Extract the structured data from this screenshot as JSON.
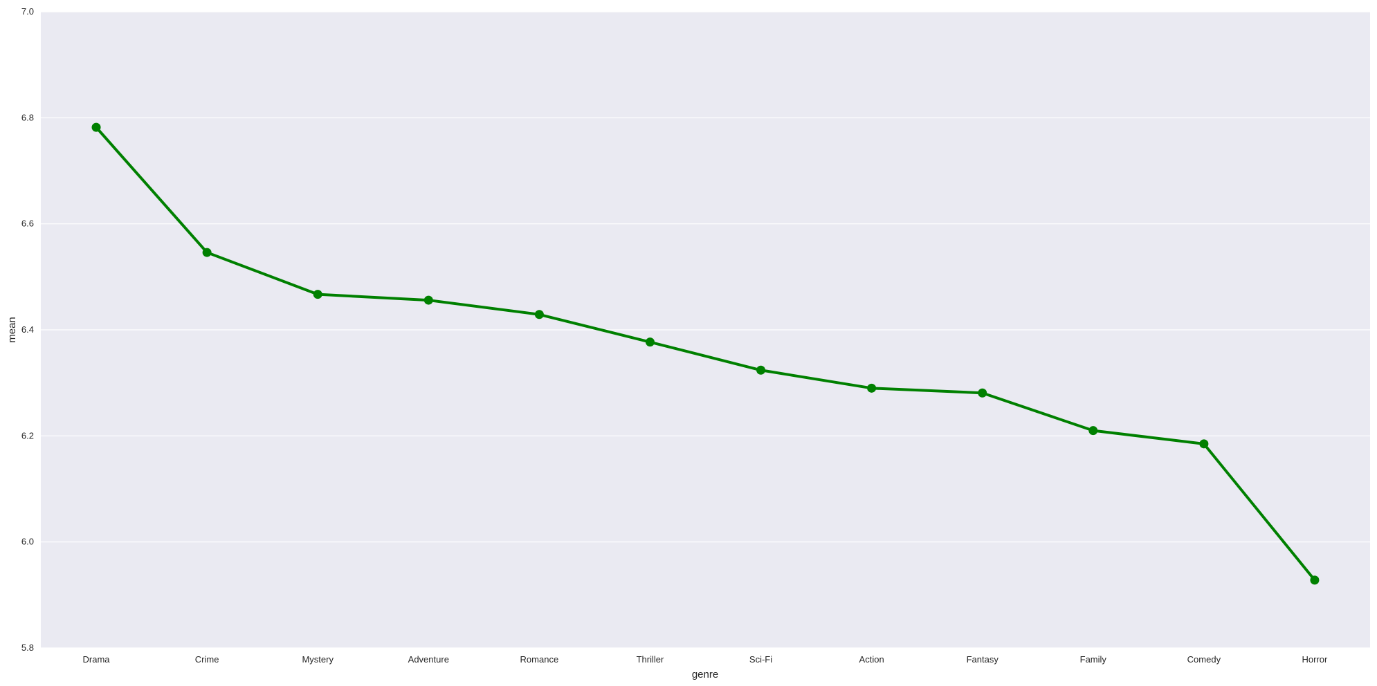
{
  "chart_data": {
    "type": "line",
    "title": "",
    "xlabel": "genre",
    "ylabel": "mean",
    "categories": [
      "Drama",
      "Crime",
      "Mystery",
      "Adventure",
      "Romance",
      "Thriller",
      "Sci-Fi",
      "Action",
      "Fantasy",
      "Family",
      "Comedy",
      "Horror"
    ],
    "series": [
      {
        "values": [
          6.782,
          6.546,
          6.467,
          6.456,
          6.429,
          6.377,
          6.324,
          6.29,
          6.281,
          6.21,
          6.185,
          5.928
        ]
      }
    ],
    "ylim": [
      5.8,
      7.0
    ],
    "yticks": [
      5.8,
      6.0,
      6.2,
      6.4,
      6.6,
      6.8,
      7.0
    ],
    "ytick_labels": [
      "5.8",
      "6.0",
      "6.2",
      "6.4",
      "6.6",
      "6.8",
      "7.0"
    ],
    "grid": true,
    "colors": {
      "line": "#008000",
      "background": "#eaeaf2",
      "grid": "#ffffff",
      "text": "#262626"
    }
  }
}
